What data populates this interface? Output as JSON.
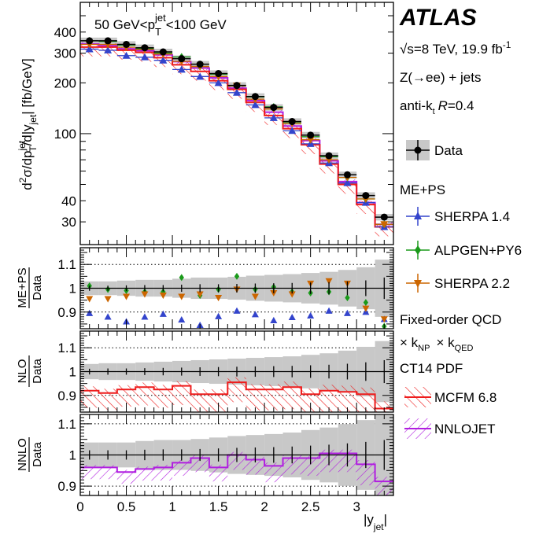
{
  "legend": {
    "atlas": "ATLAS",
    "energy": "√s=8 TeV, 19.9 fb",
    "energy_exp": "-1",
    "process": "Z(→ee) + jets",
    "algo_prefix": "anti-k",
    "algo_sub": "t",
    "algo_R": "R",
    "algo_val": "=0.4",
    "data_label": "Data",
    "meps_header": "ME+PS",
    "sherpa14": "SHERPA 1.4",
    "alpgen": "ALPGEN+PY6",
    "sherpa22": "SHERPA 2.2",
    "fo_header": "Fixed-order QCD",
    "knp_prefix": "× k",
    "knp_sub": "NP",
    "kqed_prefix": "× k",
    "kqed_sub": "QED",
    "pdf": "CT14 PDF",
    "mcfm": "MCFM 6.8",
    "nnlojet": "NNLOJET"
  },
  "colors": {
    "data": "#000000",
    "band": "#c8c8c8",
    "sherpa14": "#3344cc",
    "alpgen": "#1a9a1a",
    "sherpa22": "#cc6600",
    "mcfm": "#ee1c1c",
    "nnlojet": "#b01ee0"
  },
  "chart_data": [
    {
      "type": "line",
      "panel": "main",
      "title": "50 GeV<p_T^jet<100 GeV",
      "title_parts": {
        "pre": "50 GeV<p",
        "sub": "T",
        "sup": "jet",
        "post": "<100 GeV"
      },
      "ylabel": "d²σ/dp_T^jet/d|y_jet| [fb/GeV]",
      "ylabel_parts": {
        "d2": "d",
        "two": "2",
        "sig": "σ/dp",
        "supjet": "jet",
        "subT": "T",
        "dy": "/d|y",
        "subjet": "jet",
        "unit": "| [fb/GeV]"
      },
      "yscale": "log",
      "ylim": [
        22,
        600
      ],
      "ytick_values": [
        30,
        40,
        100,
        200,
        300,
        400
      ],
      "ytick_labels": [
        "30",
        "40",
        "100",
        "200",
        "300",
        "400"
      ],
      "xlim": [
        0,
        3.4
      ],
      "bin_edges": [
        0,
        0.2,
        0.4,
        0.6,
        0.8,
        1.0,
        1.2,
        1.4,
        1.6,
        1.8,
        2.0,
        2.2,
        2.4,
        2.6,
        2.8,
        3.0,
        3.2,
        3.4
      ],
      "x": [
        0.1,
        0.3,
        0.5,
        0.7,
        0.9,
        1.1,
        1.3,
        1.5,
        1.7,
        1.9,
        2.1,
        2.3,
        2.5,
        2.7,
        2.9,
        3.1,
        3.3
      ],
      "data": [
        355,
        355,
        338,
        323,
        305,
        278,
        258,
        227,
        193,
        166,
        143,
        118,
        98,
        74,
        57,
        43,
        32
      ],
      "mcfm": [
        326,
        326,
        312,
        303,
        282,
        256,
        234,
        206,
        183,
        153,
        128,
        107,
        86,
        66,
        50,
        38,
        28
      ],
      "nnlojet": [
        340,
        332,
        318,
        310,
        293,
        267,
        245,
        214,
        186,
        157,
        134,
        111,
        91,
        69,
        52,
        39,
        29
      ],
      "sherpa14": [
        317,
        312,
        290,
        284,
        272,
        240,
        218,
        200,
        175,
        148,
        124,
        104,
        87,
        67,
        51,
        39,
        28
      ],
      "alpgen": [
        355,
        352,
        335,
        318,
        300,
        285,
        250,
        225,
        192,
        165,
        144,
        116,
        96,
        73,
        55,
        41,
        29
      ],
      "sherpa22": [
        338,
        338,
        325,
        315,
        296,
        268,
        250,
        218,
        192,
        160,
        140,
        115,
        92,
        70,
        55,
        41,
        29
      ]
    },
    {
      "type": "scatter",
      "panel": "ratio_meps",
      "ylabel_num": "ME+PS",
      "ylabel_den": "Data",
      "ylim": [
        0.83,
        1.17
      ],
      "ytick_values": [
        0.9,
        1,
        1.1
      ],
      "ytick_labels": [
        "0.9",
        "1",
        "1.1"
      ],
      "band_halfwidth": [
        0.018,
        0.018,
        0.02,
        0.022,
        0.022,
        0.025,
        0.028,
        0.028,
        0.03,
        0.033,
        0.035,
        0.037,
        0.04,
        0.043,
        0.048,
        0.055,
        0.075
      ],
      "sherpa14": [
        0.895,
        0.88,
        0.86,
        0.88,
        0.892,
        0.868,
        0.845,
        0.882,
        0.905,
        0.89,
        0.865,
        0.878,
        0.885,
        0.905,
        0.895,
        0.9,
        0.87
      ],
      "alpgen": [
        1.01,
        0.995,
        0.99,
        0.985,
        0.985,
        1.045,
        0.97,
        0.995,
        1.05,
        0.995,
        1.005,
        0.985,
        0.98,
        0.985,
        0.96,
        0.94,
        0.84
      ],
      "sherpa22": [
        0.955,
        0.955,
        0.965,
        0.975,
        0.97,
        0.965,
        0.975,
        0.96,
        0.995,
        0.965,
        0.98,
        0.975,
        1.02,
        1.03,
        1.02,
        0.915,
        0.87
      ]
    },
    {
      "type": "line",
      "panel": "ratio_nlo",
      "ylabel_num": "NLO",
      "ylabel_den": "Data",
      "ylim": [
        0.83,
        1.17
      ],
      "ytick_values": [
        0.9,
        1,
        1.1
      ],
      "ytick_labels": [
        "0.9",
        "1",
        "1.1"
      ],
      "band_halfwidth": [
        0.02,
        0.022,
        0.022,
        0.024,
        0.026,
        0.028,
        0.03,
        0.032,
        0.034,
        0.036,
        0.038,
        0.04,
        0.044,
        0.048,
        0.055,
        0.065,
        0.08
      ],
      "mcfm": [
        0.92,
        0.91,
        0.925,
        0.935,
        0.925,
        0.94,
        0.905,
        0.905,
        0.955,
        0.925,
        0.925,
        0.935,
        0.905,
        0.92,
        0.915,
        0.905,
        0.845
      ],
      "mcfm_err": [
        0.045,
        0.045,
        0.045,
        0.048,
        0.048,
        0.05,
        0.05,
        0.052,
        0.052,
        0.055,
        0.055,
        0.058,
        0.06,
        0.062,
        0.065,
        0.07,
        0.075
      ]
    },
    {
      "type": "line",
      "panel": "ratio_nnlo",
      "ylabel_num": "NNLO",
      "ylabel_den": "Data",
      "ylim": [
        0.87,
        1.13
      ],
      "ytick_values": [
        0.9,
        1,
        1.1
      ],
      "ytick_labels": [
        "0.9",
        "1",
        "1.1"
      ],
      "xlabel": "|y_jet|",
      "xtick_values": [
        0,
        0.5,
        1,
        1.5,
        2,
        2.5,
        3
      ],
      "xtick_labels": [
        "0",
        "0.5",
        "1",
        "1.5",
        "2",
        "2.5",
        "3"
      ],
      "band_halfwidth": [
        0.025,
        0.025,
        0.025,
        0.028,
        0.03,
        0.03,
        0.032,
        0.035,
        0.038,
        0.04,
        0.042,
        0.045,
        0.05,
        0.055,
        0.062,
        0.07,
        0.08
      ],
      "nnlojet": [
        0.96,
        0.96,
        0.945,
        0.955,
        0.96,
        0.975,
        0.99,
        0.96,
        1.0,
        0.985,
        0.965,
        0.99,
        0.99,
        1.005,
        1.005,
        0.97,
        0.915
      ],
      "nnlojet_err": [
        0.025,
        0.025,
        0.025,
        0.025,
        0.028,
        0.028,
        0.03,
        0.03,
        0.032,
        0.032,
        0.035,
        0.035,
        0.038,
        0.04,
        0.04,
        0.045,
        0.05
      ]
    }
  ]
}
